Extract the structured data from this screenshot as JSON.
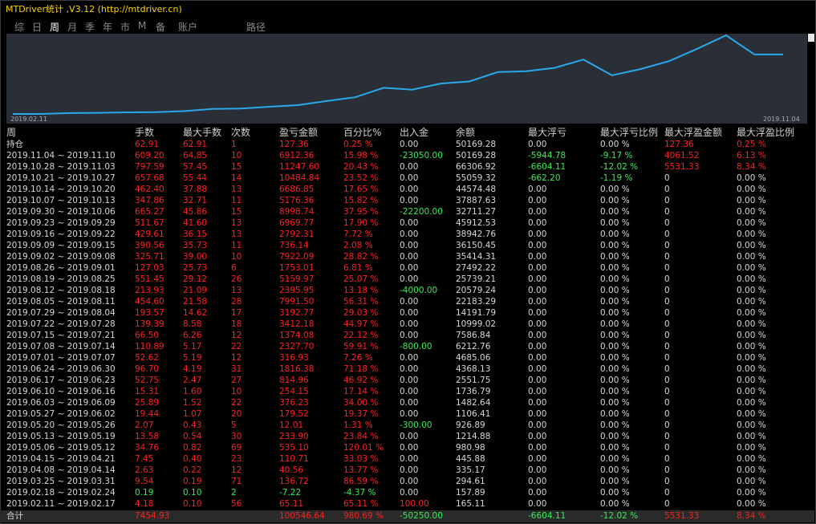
{
  "title": "MTDriver统计 ,V3.12 (http://mtdriver.cn)",
  "tabs": [
    "综",
    "日",
    "周",
    "月",
    "季",
    "年",
    "市",
    "M",
    "备"
  ],
  "active_tab": 2,
  "account_label": "账户",
  "path_label": "路径",
  "chart": {
    "start_label": "2019.02.11",
    "end_label": "2019.11.04",
    "line_color": "#29a8ea",
    "bg_color": "#2a2e37",
    "values": [
      165.11,
      157.89,
      926.89,
      1106.41,
      1482.64,
      1736.79,
      2551.75,
      4368.13,
      4685.06,
      6212.76,
      7586.84,
      10999.02,
      14191.79,
      22183.29,
      20579.24,
      25739.21,
      27492.22,
      35414.31,
      36150.45,
      38942.76,
      45912.53,
      32711.27,
      37887.63,
      44574.48,
      55059.32,
      66306.92,
      50169.28,
      50169.28
    ]
  },
  "headers": [
    "周",
    "手数",
    "最大手数",
    "次数",
    "盈亏金额",
    "百分比%",
    "出入金",
    "余额",
    "最大浮亏",
    "最大浮亏比例",
    "最大浮盈金额",
    "最大浮盈比例"
  ],
  "rows": [
    [
      "持仓",
      "62.91",
      "62.91",
      "1",
      "127.36",
      "0.25 %",
      "0.00",
      "50169.28",
      "0.00",
      "0.00 %",
      "127.36",
      "0.25 %"
    ],
    [
      "2019.11.04 ~ 2019.11.10",
      "609.20",
      "64.85",
      "10",
      "6912.36",
      "15.98 %",
      "-23050.00",
      "50169.28",
      "-5944.78",
      "-9.17 %",
      "4061.52",
      "6.13 %"
    ],
    [
      "2019.10.28 ~ 2019.11.03",
      "797.59",
      "57.45",
      "15",
      "11247.60",
      "20.43 %",
      "0.00",
      "66306.92",
      "-6604.11",
      "-12.02 %",
      "5531.33",
      "8.34 %"
    ],
    [
      "2019.10.21 ~ 2019.10.27",
      "657.68",
      "55.44",
      "14",
      "10484.84",
      "23.52 %",
      "0.00",
      "55059.32",
      "-662.20",
      "-1.19 %",
      "0",
      "0.00 %"
    ],
    [
      "2019.10.14 ~ 2019.10.20",
      "462.40",
      "37.88",
      "13",
      "6686.85",
      "17.65 %",
      "0.00",
      "44574.48",
      "0.00",
      "0.00 %",
      "0",
      "0.00 %"
    ],
    [
      "2019.10.07 ~ 2019.10.13",
      "347.86",
      "32.71",
      "11",
      "5176.36",
      "15.82 %",
      "0.00",
      "37887.63",
      "0.00",
      "0.00 %",
      "0",
      "0.00 %"
    ],
    [
      "2019.09.30 ~ 2019.10.06",
      "665.27",
      "45.86",
      "15",
      "8998.74",
      "37.95 %",
      "-22200.00",
      "32711.27",
      "0.00",
      "0.00 %",
      "0",
      "0.00 %"
    ],
    [
      "2019.09.23 ~ 2019.09.29",
      "511.67",
      "41.60",
      "13",
      "6969.77",
      "17.90 %",
      "0.00",
      "45912.53",
      "0.00",
      "0.00 %",
      "0",
      "0.00 %"
    ],
    [
      "2019.09.16 ~ 2019.09.22",
      "429.61",
      "36.15",
      "13",
      "2792.31",
      "7.72 %",
      "0.00",
      "38942.76",
      "0.00",
      "0.00 %",
      "0",
      "0.00 %"
    ],
    [
      "2019.09.09 ~ 2019.09.15",
      "390.56",
      "35.73",
      "11",
      "736.14",
      "2.08 %",
      "0.00",
      "36150.45",
      "0.00",
      "0.00 %",
      "0",
      "0.00 %"
    ],
    [
      "2019.09.02 ~ 2019.09.08",
      "325.71",
      "39.00",
      "10",
      "7922.09",
      "28.82 %",
      "0.00",
      "35414.31",
      "0.00",
      "0.00 %",
      "0",
      "0.00 %"
    ],
    [
      "2019.08.26 ~ 2019.09.01",
      "127.03",
      "25.73",
      "6",
      "1753.01",
      "6.81 %",
      "0.00",
      "27492.22",
      "0.00",
      "0.00 %",
      "0",
      "0.00 %"
    ],
    [
      "2019.08.19 ~ 2019.08.25",
      "551.45",
      "29.12",
      "26",
      "5159.97",
      "25.07 %",
      "0.00",
      "25739.21",
      "0.00",
      "0.00 %",
      "0",
      "0.00 %"
    ],
    [
      "2019.08.12 ~ 2019.08.18",
      "213.93",
      "21.09",
      "13",
      "2395.95",
      "13.18 %",
      "-4000.00",
      "20579.24",
      "0.00",
      "0.00 %",
      "0",
      "0.00 %"
    ],
    [
      "2019.08.05 ~ 2019.08.11",
      "454.60",
      "21.58",
      "28",
      "7991.50",
      "56.31 %",
      "0.00",
      "22183.29",
      "0.00",
      "0.00 %",
      "0",
      "0.00 %"
    ],
    [
      "2019.07.29 ~ 2019.08.04",
      "193.57",
      "14.62",
      "17",
      "3192.77",
      "29.03 %",
      "0.00",
      "14191.79",
      "0.00",
      "0.00 %",
      "0",
      "0.00 %"
    ],
    [
      "2019.07.22 ~ 2019.07.28",
      "139.39",
      "8.58",
      "18",
      "3412.18",
      "44.97 %",
      "0.00",
      "10999.02",
      "0.00",
      "0.00 %",
      "0",
      "0.00 %"
    ],
    [
      "2019.07.15 ~ 2019.07.21",
      "66.50",
      "6.26",
      "12",
      "1374.08",
      "22.12 %",
      "0.00",
      "7586.84",
      "0.00",
      "0.00 %",
      "0",
      "0.00 %"
    ],
    [
      "2019.07.08 ~ 2019.07.14",
      "110.89",
      "5.17",
      "22",
      "2327.70",
      "59.91 %",
      "-800.00",
      "6212.76",
      "0.00",
      "0.00 %",
      "0",
      "0.00 %"
    ],
    [
      "2019.07.01 ~ 2019.07.07",
      "52.62",
      "5.19",
      "12",
      "316.93",
      "7.26 %",
      "0.00",
      "4685.06",
      "0.00",
      "0.00 %",
      "0",
      "0.00 %"
    ],
    [
      "2019.06.24 ~ 2019.06.30",
      "96.70",
      "4.19",
      "31",
      "1816.38",
      "71.18 %",
      "0.00",
      "4368.13",
      "0.00",
      "0.00 %",
      "0",
      "0.00 %"
    ],
    [
      "2019.06.17 ~ 2019.06.23",
      "52.75",
      "2.47",
      "27",
      "814.96",
      "46.92 %",
      "0.00",
      "2551.75",
      "0.00",
      "0.00 %",
      "0",
      "0.00 %"
    ],
    [
      "2019.06.10 ~ 2019.06.16",
      "15.31",
      "1.60",
      "10",
      "254.15",
      "17.14 %",
      "0.00",
      "1736.79",
      "0.00",
      "0.00 %",
      "0",
      "0.00 %"
    ],
    [
      "2019.06.03 ~ 2019.06.09",
      "25.89",
      "1.52",
      "22",
      "376.23",
      "34.00 %",
      "0.00",
      "1482.64",
      "0.00",
      "0.00 %",
      "0",
      "0.00 %"
    ],
    [
      "2019.05.27 ~ 2019.06.02",
      "19.44",
      "1.07",
      "20",
      "179.52",
      "19.37 %",
      "0.00",
      "1106.41",
      "0.00",
      "0.00 %",
      "0",
      "0.00 %"
    ],
    [
      "2019.05.20 ~ 2019.05.26",
      "2.07",
      "0.43",
      "5",
      "12.01",
      "1.31 %",
      "-300.00",
      "926.89",
      "0.00",
      "0.00 %",
      "0",
      "0.00 %"
    ],
    [
      "2019.05.13 ~ 2019.05.19",
      "13.58",
      "0.54",
      "30",
      "233.90",
      "23.84 %",
      "0.00",
      "1214.88",
      "0.00",
      "0.00 %",
      "0",
      "0.00 %"
    ],
    [
      "2019.05.06 ~ 2019.05.12",
      "34.76",
      "0.82",
      "69",
      "535.10",
      "120.01 %",
      "0.00",
      "980.98",
      "0.00",
      "0.00 %",
      "0",
      "0.00 %"
    ],
    [
      "2019.04.15 ~ 2019.04.21",
      "7.45",
      "0.40",
      "23",
      "110.71",
      "33.03 %",
      "0.00",
      "445.88",
      "0.00",
      "0.00 %",
      "0",
      "0.00 %"
    ],
    [
      "2019.04.08 ~ 2019.04.14",
      "2.63",
      "0.22",
      "12",
      "40.56",
      "13.77 %",
      "0.00",
      "335.17",
      "0.00",
      "0.00 %",
      "0",
      "0.00 %"
    ],
    [
      "2019.03.25 ~ 2019.03.31",
      "9.54",
      "0.19",
      "71",
      "136.72",
      "86.59 %",
      "0.00",
      "294.61",
      "0.00",
      "0.00 %",
      "0",
      "0.00 %"
    ],
    [
      "2019.02.18 ~ 2019.02.24",
      "0.19",
      "0.10",
      "2",
      "-7.22",
      "-4.37 %",
      "0.00",
      "157.89",
      "0.00",
      "0.00 %",
      "0",
      "0.00 %"
    ],
    [
      "2019.02.11 ~ 2019.02.17",
      "4.18",
      "0.10",
      "56",
      "65.11",
      "65.11 %",
      "100.00",
      "165.11",
      "0.00",
      "0.00 %",
      "0",
      "0.00 %"
    ]
  ],
  "total": [
    "合计",
    "7454.93",
    "",
    "",
    "100546.64",
    "980.69 %",
    "-50250.00",
    "",
    "-6604.11",
    "-12.02 %",
    "5531.33",
    "8.34 %"
  ]
}
